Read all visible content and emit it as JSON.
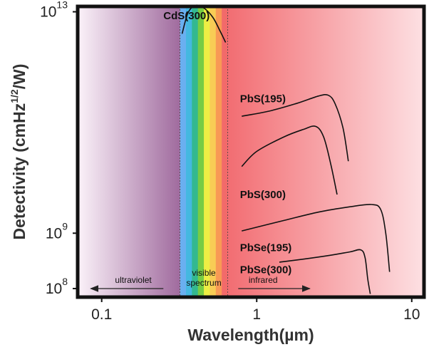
{
  "chart_data": {
    "type": "line",
    "xscale": "log",
    "yscale": "log",
    "xlim": [
      0.07,
      12
    ],
    "ylim": [
      70000000.0,
      12500000000000.0
    ],
    "xlabel": "Wavelength(µm)",
    "ylabel": "Detectivity (cmHz",
    "ylabel_sup": "1/2",
    "ylabel_tail": "/W)",
    "x_ticks": [
      {
        "value": 0.1,
        "label": "0.1"
      },
      {
        "value": 1,
        "label": "1"
      },
      {
        "value": 10,
        "label": "10"
      }
    ],
    "y_ticks": [
      {
        "value": 10000000000000.0,
        "base": "10",
        "exp": "13"
      },
      {
        "value": 1000000000.0,
        "base": "10",
        "exp": "9"
      },
      {
        "value": 100000000.0,
        "base": "10",
        "exp": "8"
      }
    ],
    "regions": {
      "uv_end": 0.32,
      "visible_start": 0.32,
      "visible_end": 0.65,
      "spectrum_colors": [
        "#6aaff0",
        "#44b8e0",
        "#33b890",
        "#77cc44",
        "#eeee44",
        "#f8cc55",
        "#f89955",
        "#f26a6a"
      ],
      "uv_label": "ultraviolet",
      "visible_label_1": "visible",
      "visible_label_2": "spectrum",
      "ir_label": "infrared",
      "uv_color": "#a06b9e",
      "ir_color": "#f26d72"
    },
    "series": [
      {
        "name": "CdS(300)",
        "label_at": [
          0.25,
          8500000000000.0
        ],
        "points": [
          [
            0.33,
            4000000000000.0
          ],
          [
            0.36,
            9500000000000.0
          ],
          [
            0.4,
            13000000000000.0
          ],
          [
            0.45,
            12000000000000.0
          ],
          [
            0.52,
            8000000000000.0
          ],
          [
            0.58,
            4500000000000.0
          ],
          [
            0.63,
            2800000000000.0
          ]
        ]
      },
      {
        "name": "PbS(195)",
        "label_at": [
          0.78,
          270000000000.0
        ],
        "points": [
          [
            0.8,
            130000000000.0
          ],
          [
            1.2,
            160000000000.0
          ],
          [
            1.8,
            220000000000.0
          ],
          [
            2.5,
            300000000000.0
          ],
          [
            2.9,
            310000000000.0
          ],
          [
            3.2,
            220000000000.0
          ],
          [
            3.6,
            80000000000.0
          ],
          [
            3.9,
            20000000000.0
          ]
        ]
      },
      {
        "name": "PbS(300)",
        "label_at": [
          0.78,
          5000000000.0
        ],
        "points": [
          [
            0.8,
            16000000000.0
          ],
          [
            1.0,
            30000000000.0
          ],
          [
            1.5,
            55000000000.0
          ],
          [
            2.0,
            75000000000.0
          ],
          [
            2.4,
            85000000000.0
          ],
          [
            2.7,
            55000000000.0
          ],
          [
            3.0,
            18000000000.0
          ],
          [
            3.3,
            5000000000.0
          ]
        ]
      },
      {
        "name": "PbSe(195)",
        "label_at": [
          0.78,
          550000000.0
        ],
        "points": [
          [
            0.8,
            1100000000.0
          ],
          [
            1.5,
            1700000000.0
          ],
          [
            2.5,
            2400000000.0
          ],
          [
            4.0,
            3000000000.0
          ],
          [
            5.5,
            3300000000.0
          ],
          [
            6.3,
            2700000000.0
          ],
          [
            6.8,
            1000000000.0
          ],
          [
            7.2,
            200000000.0
          ]
        ]
      },
      {
        "name": "PbSe(300)",
        "label_at": [
          0.78,
          220000000.0
        ],
        "points": [
          [
            1.4,
            300000000.0
          ],
          [
            2.0,
            340000000.0
          ],
          [
            3.0,
            400000000.0
          ],
          [
            4.0,
            460000000.0
          ],
          [
            4.7,
            500000000.0
          ],
          [
            5.0,
            360000000.0
          ],
          [
            5.2,
            150000000.0
          ],
          [
            5.4,
            80000000.0
          ]
        ]
      }
    ]
  }
}
